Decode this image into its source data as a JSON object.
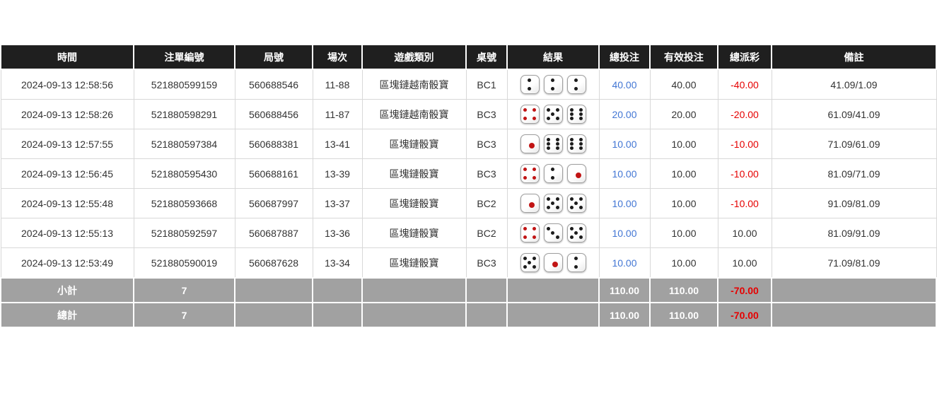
{
  "page": {
    "background": "#ffffff"
  },
  "table": {
    "headers": [
      "時間",
      "注單編號",
      "局號",
      "場次",
      "遊戲類別",
      "桌號",
      "結果",
      "總投注",
      "有效投注",
      "總派彩",
      "備註"
    ],
    "colors": {
      "header_bg": "#1f1f1f",
      "header_text": "#ffffff",
      "link_blue": "#4276d4",
      "negative_red": "#e60000",
      "footer_bg": "#a1a1a1",
      "dice_black_pip": "#1c1c1c",
      "dice_red_pip": "#c11414"
    },
    "dice_red_values": [
      1,
      4
    ],
    "rows": [
      {
        "time": "2024-09-13 12:58:56",
        "bet_id": "521880599159",
        "round_id": "560688546",
        "session": "11-88",
        "game_type": "區塊鏈越南骰寶",
        "table_no": "BC1",
        "dice": [
          2,
          2,
          2
        ],
        "total_bet": "40.00",
        "valid_bet": "40.00",
        "payout": "-40.00",
        "payout_negative": true,
        "remark": "41.09/1.09"
      },
      {
        "time": "2024-09-13 12:58:26",
        "bet_id": "521880598291",
        "round_id": "560688456",
        "session": "11-87",
        "game_type": "區塊鏈越南骰寶",
        "table_no": "BC3",
        "dice": [
          4,
          5,
          6
        ],
        "total_bet": "20.00",
        "valid_bet": "20.00",
        "payout": "-20.00",
        "payout_negative": true,
        "remark": "61.09/41.09"
      },
      {
        "time": "2024-09-13 12:57:55",
        "bet_id": "521880597384",
        "round_id": "560688381",
        "session": "13-41",
        "game_type": "區塊鏈骰寶",
        "table_no": "BC3",
        "dice": [
          1,
          6,
          6
        ],
        "total_bet": "10.00",
        "valid_bet": "10.00",
        "payout": "-10.00",
        "payout_negative": true,
        "remark": "71.09/61.09"
      },
      {
        "time": "2024-09-13 12:56:45",
        "bet_id": "521880595430",
        "round_id": "560688161",
        "session": "13-39",
        "game_type": "區塊鏈骰寶",
        "table_no": "BC3",
        "dice": [
          4,
          2,
          1
        ],
        "total_bet": "10.00",
        "valid_bet": "10.00",
        "payout": "-10.00",
        "payout_negative": true,
        "remark": "81.09/71.09"
      },
      {
        "time": "2024-09-13 12:55:48",
        "bet_id": "521880593668",
        "round_id": "560687997",
        "session": "13-37",
        "game_type": "區塊鏈骰寶",
        "table_no": "BC2",
        "dice": [
          1,
          5,
          5
        ],
        "total_bet": "10.00",
        "valid_bet": "10.00",
        "payout": "-10.00",
        "payout_negative": true,
        "remark": "91.09/81.09"
      },
      {
        "time": "2024-09-13 12:55:13",
        "bet_id": "521880592597",
        "round_id": "560687887",
        "session": "13-36",
        "game_type": "區塊鏈骰寶",
        "table_no": "BC2",
        "dice": [
          4,
          3,
          5
        ],
        "total_bet": "10.00",
        "valid_bet": "10.00",
        "payout": "10.00",
        "payout_negative": false,
        "remark": "81.09/91.09"
      },
      {
        "time": "2024-09-13 12:53:49",
        "bet_id": "521880590019",
        "round_id": "560687628",
        "session": "13-34",
        "game_type": "區塊鏈骰寶",
        "table_no": "BC3",
        "dice": [
          5,
          1,
          2
        ],
        "total_bet": "10.00",
        "valid_bet": "10.00",
        "payout": "10.00",
        "payout_negative": false,
        "remark": "71.09/81.09"
      }
    ],
    "footer": [
      {
        "label": "小計",
        "count": "7",
        "total_bet": "110.00",
        "valid_bet": "110.00",
        "payout": "-70.00",
        "payout_negative": true
      },
      {
        "label": "總計",
        "count": "7",
        "total_bet": "110.00",
        "valid_bet": "110.00",
        "payout": "-70.00",
        "payout_negative": true
      }
    ]
  }
}
